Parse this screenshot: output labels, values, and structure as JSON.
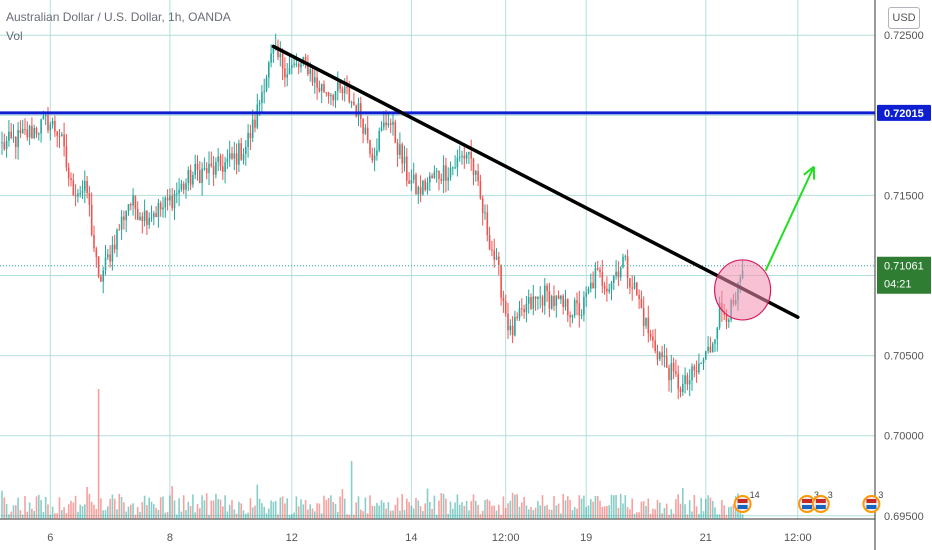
{
  "header": {
    "title": "Australian Dollar / U.S. Dollar, 1h, OANDA",
    "volume_label": "Vol",
    "currency": "USD"
  },
  "colors": {
    "up": "#26a69a",
    "down": "#ef5350",
    "grid": "#b2dfdb",
    "resistance": "#0d1fd1",
    "trendline": "#000000",
    "arrow": "#22dd22",
    "circle_fill": "#f48fb1",
    "circle_stroke": "#d81b60",
    "price_badge": "#2e7d32",
    "timer_badge": "#2e7d32"
  },
  "chart_data": {
    "type": "candlestick",
    "symbol": "AUDUSD",
    "timeframe": "1h",
    "ylim": [
      0.6948,
      0.7272
    ],
    "y_ticks": [
      "0.72500",
      "0.72000",
      "0.71500",
      "0.71000",
      "0.70500",
      "0.70000",
      "0.69500"
    ],
    "y_tick_values": [
      0.725,
      0.72,
      0.715,
      0.71,
      0.705,
      0.7,
      0.695
    ],
    "x_tick_labels": [
      "6",
      "8",
      "12",
      "14",
      "12:00",
      "19",
      "21",
      "12:00"
    ],
    "x_tick_slots": [
      21,
      73,
      126,
      178,
      219,
      254,
      306,
      346
    ],
    "price_path": [
      [
        0,
        0.7181
      ],
      [
        8,
        0.7186
      ],
      [
        20,
        0.7196
      ],
      [
        25,
        0.7189
      ],
      [
        30,
        0.7155
      ],
      [
        37,
        0.7152
      ],
      [
        42,
        0.7095
      ],
      [
        48,
        0.7118
      ],
      [
        55,
        0.7146
      ],
      [
        62,
        0.7138
      ],
      [
        70,
        0.7142
      ],
      [
        76,
        0.7152
      ],
      [
        84,
        0.7164
      ],
      [
        92,
        0.7166
      ],
      [
        100,
        0.7172
      ],
      [
        106,
        0.7181
      ],
      [
        110,
        0.7196
      ],
      [
        114,
        0.7222
      ],
      [
        118,
        0.7238
      ],
      [
        124,
        0.7229
      ],
      [
        133,
        0.7231
      ],
      [
        137,
        0.7218
      ],
      [
        143,
        0.7215
      ],
      [
        150,
        0.7213
      ],
      [
        156,
        0.72
      ],
      [
        161,
        0.7177
      ],
      [
        168,
        0.7199
      ],
      [
        176,
        0.7163
      ],
      [
        181,
        0.7152
      ],
      [
        188,
        0.7162
      ],
      [
        196,
        0.7168
      ],
      [
        203,
        0.7178
      ],
      [
        210,
        0.7134
      ],
      [
        216,
        0.71
      ],
      [
        221,
        0.7063
      ],
      [
        228,
        0.708
      ],
      [
        236,
        0.7088
      ],
      [
        244,
        0.708
      ],
      [
        252,
        0.7078
      ],
      [
        258,
        0.71
      ],
      [
        264,
        0.7095
      ],
      [
        270,
        0.711
      ],
      [
        276,
        0.7088
      ],
      [
        282,
        0.706
      ],
      [
        288,
        0.7046
      ],
      [
        292,
        0.7036
      ],
      [
        296,
        0.703
      ],
      [
        302,
        0.704
      ],
      [
        308,
        0.7055
      ],
      [
        312,
        0.7078
      ],
      [
        318,
        0.7078
      ],
      [
        322,
        0.71
      ]
    ],
    "last_price": "0.71061",
    "countdown": "04:21",
    "resistance_level": 0.72015,
    "resistance_label": "0.72015",
    "trendline": {
      "start": [
        118,
        0.7243
      ],
      "end": [
        346,
        0.7074
      ]
    },
    "highlight_circle": {
      "slot": 322,
      "price": 0.7091
    },
    "arrow": {
      "from": [
        332,
        0.7103
      ],
      "to": [
        353,
        0.7168
      ]
    },
    "event_markers": [
      {
        "slot": 322,
        "label": "14"
      },
      {
        "slot": 350,
        "label": "3"
      },
      {
        "slot": 356,
        "label": "3"
      },
      {
        "slot": 378,
        "label": "3"
      }
    ]
  }
}
